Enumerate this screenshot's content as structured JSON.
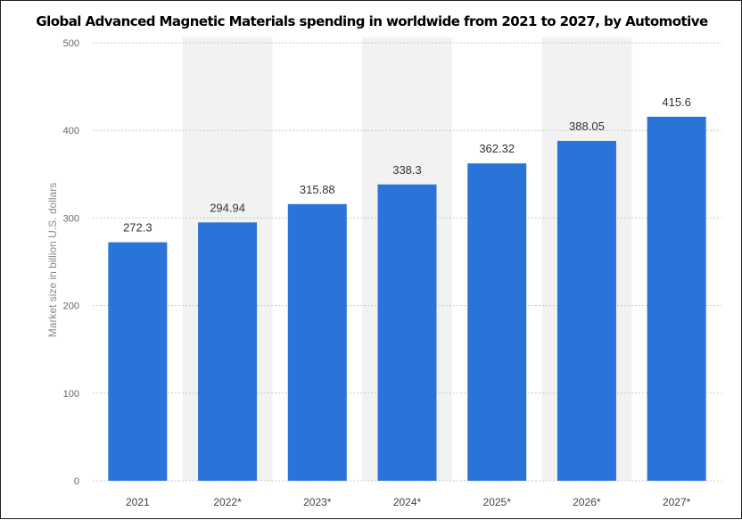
{
  "chart_data": {
    "type": "bar",
    "title": "Global Advanced Magnetic Materials spending in worldwide from 2021 to 2027, by Automotive",
    "xlabel": "",
    "ylabel": "Market size in billion U.S. dollars",
    "categories": [
      "2021",
      "2022*",
      "2023*",
      "2024*",
      "2025*",
      "2026*",
      "2027*"
    ],
    "values": [
      272.3,
      294.94,
      315.88,
      338.3,
      362.32,
      388.05,
      415.6
    ],
    "value_labels": [
      "272.3",
      "294.94",
      "315.88",
      "338.3",
      "362.32",
      "388.05",
      "415.6"
    ],
    "ylim": [
      0,
      500
    ],
    "yticks": [
      0,
      100,
      200,
      300,
      400,
      500
    ],
    "grid": true,
    "legend": "none",
    "colors": {
      "bar": "#2a74d9",
      "band": "#f2f2f2",
      "grid": "#c8c8c8"
    }
  }
}
